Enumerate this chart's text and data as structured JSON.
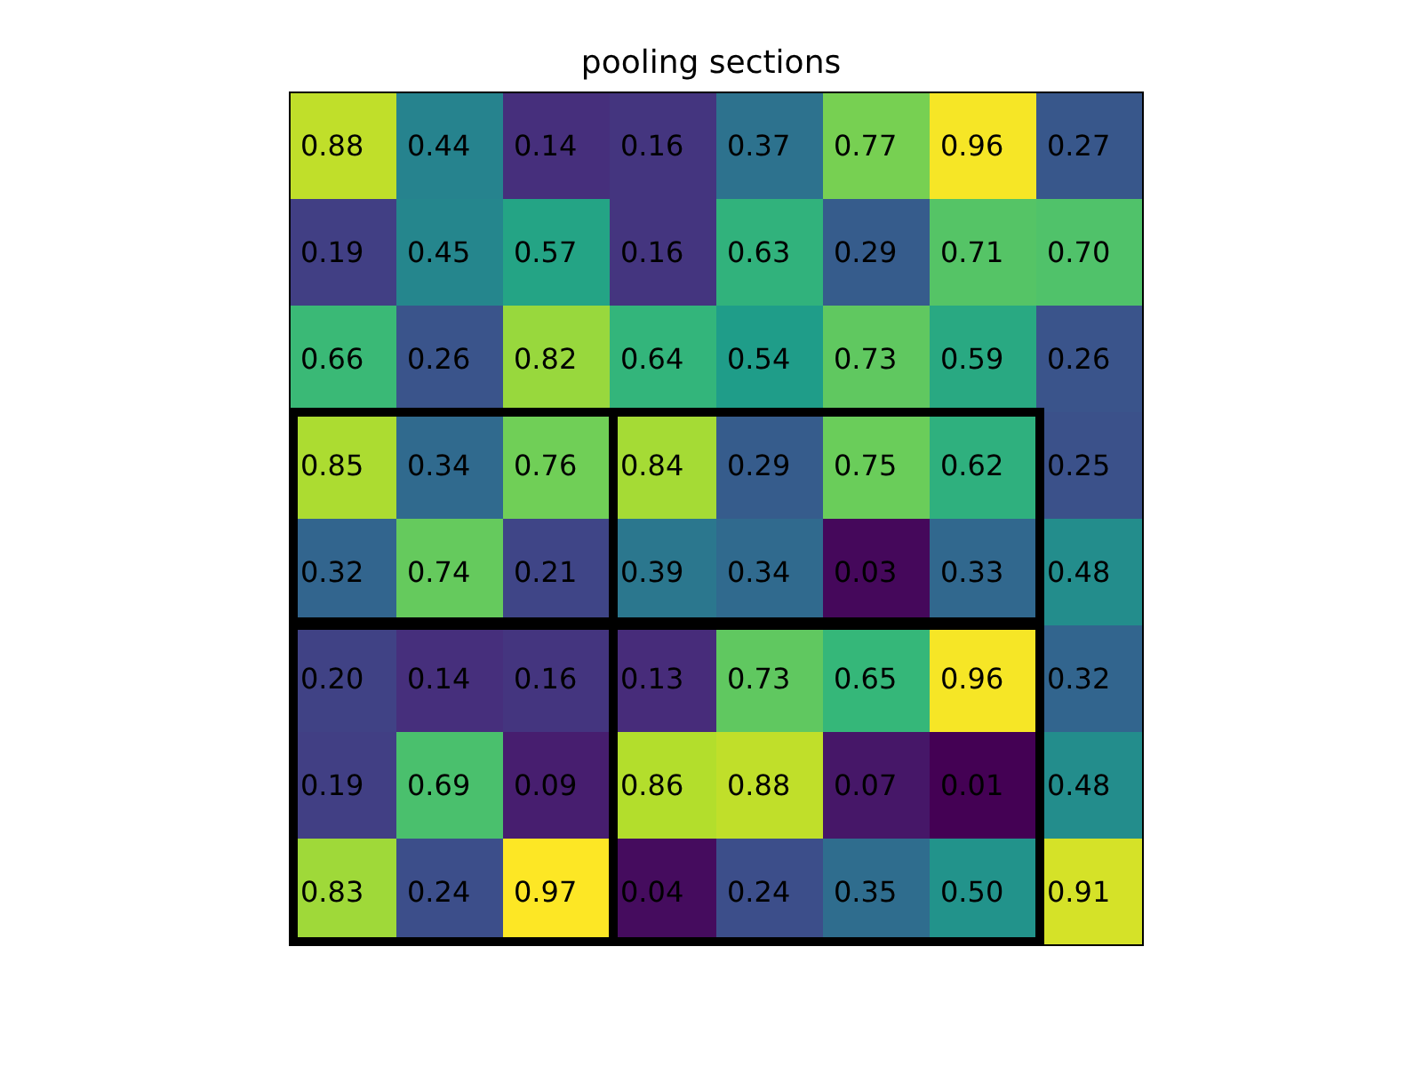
{
  "chart_data": {
    "type": "heatmap",
    "title": "pooling sections",
    "tick_labels": false,
    "categories": [
      null,
      null,
      null,
      null,
      null,
      null,
      null,
      null
    ],
    "y_categories": [
      null,
      null,
      null,
      null,
      null,
      null,
      null,
      null
    ],
    "cells": [
      [
        0.88,
        0.44,
        0.14,
        0.16,
        0.37,
        0.77,
        0.96,
        0.27
      ],
      [
        0.19,
        0.45,
        0.57,
        0.16,
        0.63,
        0.29,
        0.71,
        0.7
      ],
      [
        0.66,
        0.26,
        0.82,
        0.64,
        0.54,
        0.73,
        0.59,
        0.26
      ],
      [
        0.85,
        0.34,
        0.76,
        0.84,
        0.29,
        0.75,
        0.62,
        0.25
      ],
      [
        0.32,
        0.74,
        0.21,
        0.39,
        0.34,
        0.03,
        0.33,
        0.48
      ],
      [
        0.2,
        0.14,
        0.16,
        0.13,
        0.73,
        0.65,
        0.96,
        0.32
      ],
      [
        0.19,
        0.69,
        0.09,
        0.86,
        0.88,
        0.07,
        0.01,
        0.48
      ],
      [
        0.83,
        0.24,
        0.97,
        0.04,
        0.24,
        0.35,
        0.5,
        0.91
      ]
    ],
    "cell_labels": [
      [
        "0.88",
        "0.44",
        "0.14",
        "0.16",
        "0.37",
        "0.77",
        "0.96",
        "0.27"
      ],
      [
        "0.19",
        "0.45",
        "0.57",
        "0.16",
        "0.63",
        "0.29",
        "0.71",
        "0.70"
      ],
      [
        "0.66",
        "0.26",
        "0.82",
        "0.64",
        "0.54",
        "0.73",
        "0.59",
        "0.26"
      ],
      [
        "0.85",
        "0.34",
        "0.76",
        "0.84",
        "0.29",
        "0.75",
        "0.62",
        "0.25"
      ],
      [
        "0.32",
        "0.74",
        "0.21",
        "0.39",
        "0.34",
        "0.03",
        "0.33",
        "0.48"
      ],
      [
        "0.20",
        "0.14",
        "0.16",
        "0.13",
        "0.73",
        "0.65",
        "0.96",
        "0.32"
      ],
      [
        "0.19",
        "0.69",
        "0.09",
        "0.86",
        "0.88",
        "0.07",
        "0.01",
        "0.48"
      ],
      [
        "0.83",
        "0.24",
        "0.97",
        "0.04",
        "0.24",
        "0.35",
        "0.50",
        "0.91"
      ]
    ],
    "data_labels": true
  }
}
